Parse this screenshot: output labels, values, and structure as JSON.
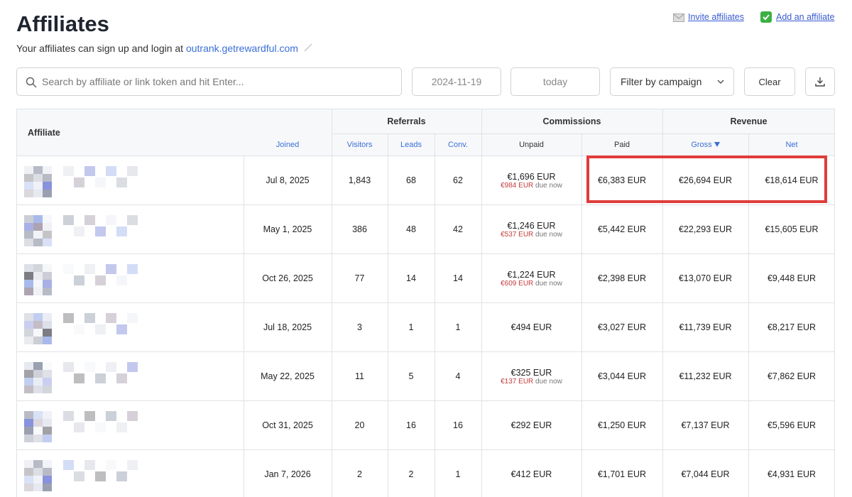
{
  "header": {
    "title": "Affiliates",
    "subtitle": "Your affiliates can sign up and login at",
    "portal_link": "outrank.getrewardful.com",
    "invite": "Invite affiliates",
    "add": "Add an affiliate"
  },
  "toolbar": {
    "search_placeholder": "Search by affiliate or link token and hit Enter...",
    "start_date": "2024-11-19",
    "end_date": "today",
    "campaign_filter": "Filter by campaign",
    "clear": "Clear"
  },
  "table": {
    "groups": {
      "referrals": "Referrals",
      "commissions": "Commissions",
      "revenue": "Revenue"
    },
    "columns": {
      "affiliate": "Affiliate",
      "joined": "Joined",
      "visitors": "Visitors",
      "leads": "Leads",
      "conv": "Conv.",
      "unpaid": "Unpaid",
      "paid": "Paid",
      "gross": "Gross",
      "net": "Net"
    },
    "due_now_label": "due now",
    "rows": [
      {
        "joined": "Jul 8, 2025",
        "visitors": "1,843",
        "leads": "68",
        "conv": "62",
        "unpaid": "€1,696 EUR",
        "due": "€984 EUR",
        "paid": "€6,383 EUR",
        "gross": "€26,694 EUR",
        "net": "€18,614 EUR"
      },
      {
        "joined": "May 1, 2025",
        "visitors": "386",
        "leads": "48",
        "conv": "42",
        "unpaid": "€1,246 EUR",
        "due": "€537 EUR",
        "paid": "€5,442 EUR",
        "gross": "€22,293 EUR",
        "net": "€15,605 EUR"
      },
      {
        "joined": "Oct 26, 2025",
        "visitors": "77",
        "leads": "14",
        "conv": "14",
        "unpaid": "€1,224 EUR",
        "due": "€609 EUR",
        "paid": "€2,398 EUR",
        "gross": "€13,070 EUR",
        "net": "€9,448 EUR"
      },
      {
        "joined": "Jul 18, 2025",
        "visitors": "3",
        "leads": "1",
        "conv": "1",
        "unpaid": "€494 EUR",
        "paid": "€3,027 EUR",
        "gross": "€11,739 EUR",
        "net": "€8,217 EUR"
      },
      {
        "joined": "May 22, 2025",
        "visitors": "11",
        "leads": "5",
        "conv": "4",
        "unpaid": "€325 EUR",
        "due": "€137 EUR",
        "paid": "€3,044 EUR",
        "gross": "€11,232 EUR",
        "net": "€7,862 EUR"
      },
      {
        "joined": "Oct 31, 2025",
        "visitors": "20",
        "leads": "16",
        "conv": "16",
        "unpaid": "€292 EUR",
        "paid": "€1,250 EUR",
        "gross": "€7,137 EUR",
        "net": "€5,596 EUR"
      },
      {
        "joined": "Jan 7, 2026",
        "visitors": "2",
        "leads": "2",
        "conv": "1",
        "unpaid": "€412 EUR",
        "paid": "€1,701 EUR",
        "gross": "€7,044 EUR",
        "net": "€4,931 EUR"
      }
    ]
  }
}
